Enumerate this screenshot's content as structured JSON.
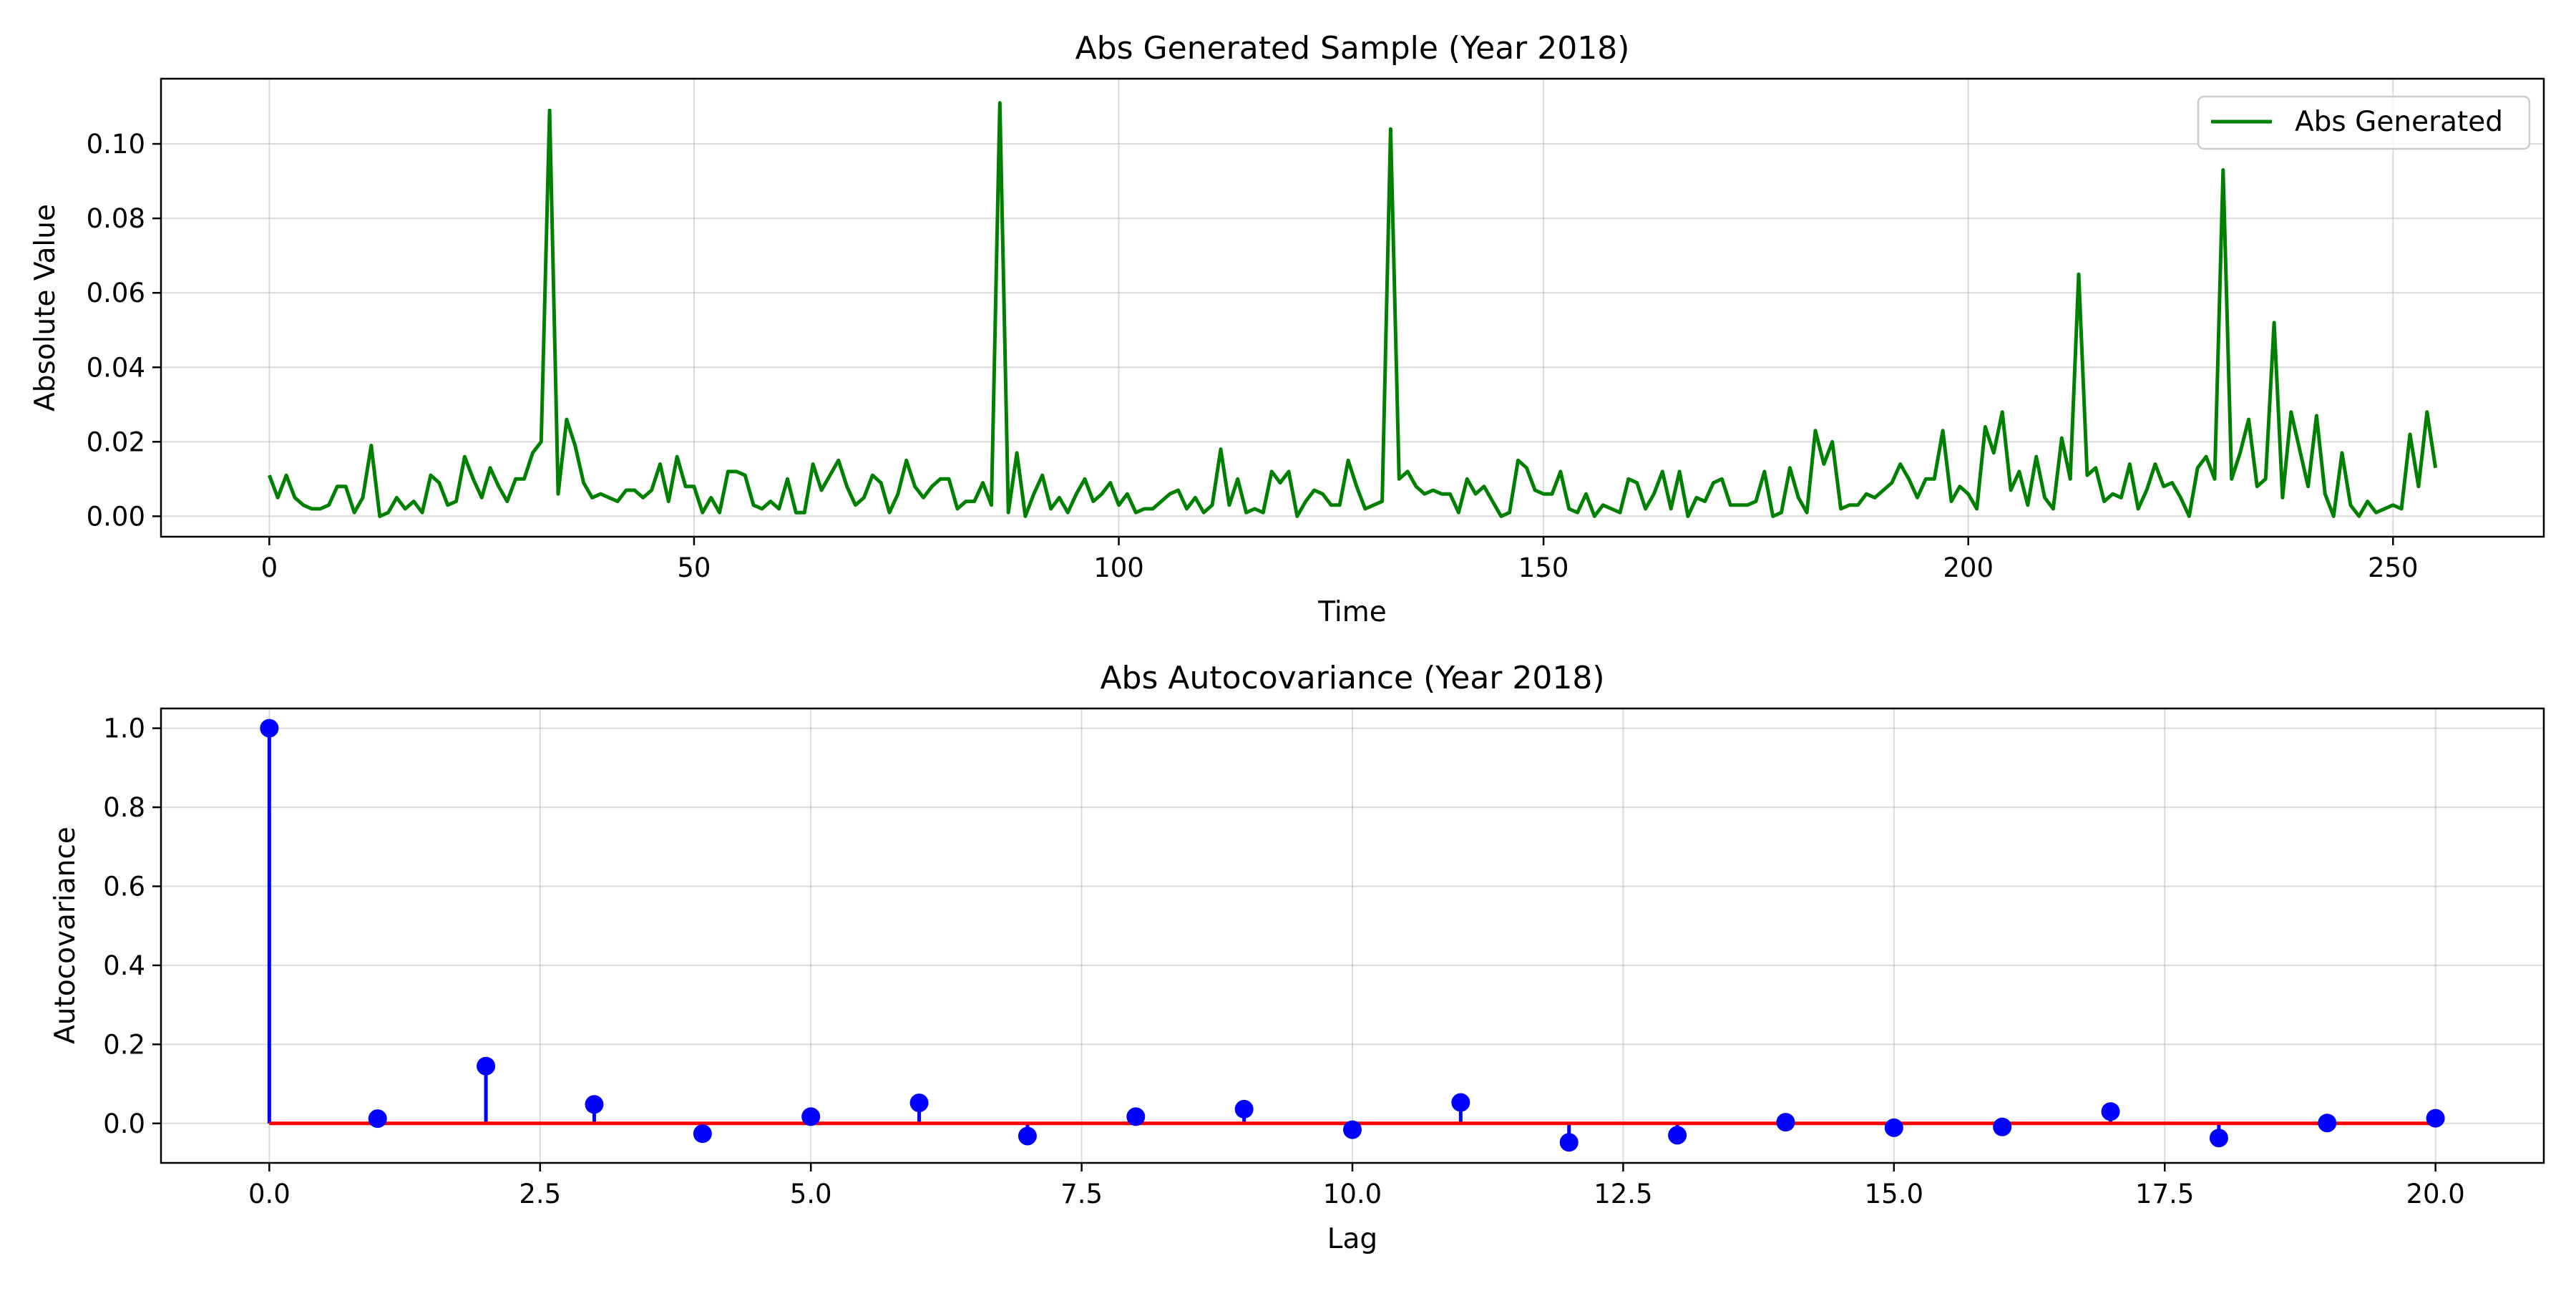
{
  "colors": {
    "series": "#008000",
    "stem": "#0000ff",
    "baseline": "#ff0000",
    "grid": "#b0b0b0",
    "axes": "#000000"
  },
  "chart_data": [
    {
      "type": "line",
      "title": "Abs Generated Sample (Year 2018)",
      "xlabel": "Time",
      "ylabel": "Absolute Value",
      "xlim": [
        -12.75,
        267.75
      ],
      "ylim": [
        -0.0055,
        0.1175
      ],
      "xticks": [
        0,
        50,
        100,
        150,
        200,
        250
      ],
      "xtick_labels": [
        "0",
        "50",
        "100",
        "150",
        "200",
        "250"
      ],
      "yticks": [
        0.0,
        0.02,
        0.04,
        0.06,
        0.08,
        0.1
      ],
      "ytick_labels": [
        "0.00",
        "0.02",
        "0.04",
        "0.06",
        "0.08",
        "0.10"
      ],
      "grid": true,
      "legend_position": "upper right",
      "series": [
        {
          "name": "Abs Generated",
          "color": "#008000",
          "y": [
            0.011,
            0.005,
            0.011,
            0.005,
            0.003,
            0.002,
            0.002,
            0.003,
            0.008,
            0.008,
            0.001,
            0.005,
            0.019,
            0.0,
            0.001,
            0.005,
            0.002,
            0.004,
            0.001,
            0.011,
            0.009,
            0.003,
            0.004,
            0.016,
            0.01,
            0.005,
            0.013,
            0.008,
            0.004,
            0.01,
            0.01,
            0.017,
            0.02,
            0.109,
            0.006,
            0.026,
            0.019,
            0.009,
            0.005,
            0.006,
            0.005,
            0.004,
            0.007,
            0.007,
            0.005,
            0.007,
            0.014,
            0.004,
            0.016,
            0.008,
            0.008,
            0.001,
            0.005,
            0.001,
            0.012,
            0.012,
            0.011,
            0.003,
            0.002,
            0.004,
            0.002,
            0.01,
            0.001,
            0.001,
            0.014,
            0.007,
            0.011,
            0.015,
            0.008,
            0.003,
            0.005,
            0.011,
            0.009,
            0.001,
            0.006,
            0.015,
            0.008,
            0.005,
            0.008,
            0.01,
            0.01,
            0.002,
            0.004,
            0.004,
            0.009,
            0.003,
            0.111,
            0.001,
            0.017,
            0.0,
            0.006,
            0.011,
            0.002,
            0.005,
            0.001,
            0.006,
            0.01,
            0.004,
            0.006,
            0.009,
            0.003,
            0.006,
            0.001,
            0.002,
            0.002,
            0.004,
            0.006,
            0.007,
            0.002,
            0.005,
            0.001,
            0.003,
            0.018,
            0.003,
            0.01,
            0.001,
            0.002,
            0.001,
            0.012,
            0.009,
            0.012,
            0.0,
            0.004,
            0.007,
            0.006,
            0.003,
            0.003,
            0.015,
            0.008,
            0.002,
            0.003,
            0.004,
            0.104,
            0.01,
            0.012,
            0.008,
            0.006,
            0.007,
            0.006,
            0.006,
            0.001,
            0.01,
            0.006,
            0.008,
            0.004,
            0.0,
            0.001,
            0.015,
            0.013,
            0.007,
            0.006,
            0.006,
            0.012,
            0.002,
            0.001,
            0.006,
            0.0,
            0.003,
            0.002,
            0.001,
            0.01,
            0.009,
            0.002,
            0.006,
            0.012,
            0.002,
            0.012,
            0.0,
            0.005,
            0.004,
            0.009,
            0.01,
            0.003,
            0.003,
            0.003,
            0.004,
            0.012,
            0.0,
            0.001,
            0.013,
            0.005,
            0.001,
            0.023,
            0.014,
            0.02,
            0.002,
            0.003,
            0.003,
            0.006,
            0.005,
            0.007,
            0.009,
            0.014,
            0.01,
            0.005,
            0.01,
            0.01,
            0.023,
            0.004,
            0.008,
            0.006,
            0.002,
            0.024,
            0.017,
            0.028,
            0.007,
            0.012,
            0.003,
            0.016,
            0.005,
            0.002,
            0.021,
            0.01,
            0.065,
            0.011,
            0.013,
            0.004,
            0.006,
            0.005,
            0.014,
            0.002,
            0.007,
            0.014,
            0.008,
            0.009,
            0.005,
            0.0,
            0.013,
            0.016,
            0.01,
            0.093,
            0.01,
            0.017,
            0.026,
            0.008,
            0.01,
            0.052,
            0.005,
            0.028,
            0.018,
            0.008,
            0.027,
            0.006,
            0.0,
            0.017,
            0.003,
            0.0,
            0.004,
            0.001,
            0.002,
            0.003,
            0.002,
            0.022,
            0.008,
            0.028,
            0.013
          ]
        }
      ]
    },
    {
      "type": "stem",
      "title": "Abs Autocovariance (Year 2018)",
      "xlabel": "Lag",
      "ylabel": "Autocovariance",
      "xlim": [
        -1.0,
        21.0
      ],
      "ylim": [
        -0.1,
        1.05
      ],
      "xticks": [
        0.0,
        2.5,
        5.0,
        7.5,
        10.0,
        12.5,
        15.0,
        17.5,
        20.0
      ],
      "xtick_labels": [
        "0.0",
        "2.5",
        "5.0",
        "7.5",
        "10.0",
        "12.5",
        "15.0",
        "17.5",
        "20.0"
      ],
      "yticks": [
        0.0,
        0.2,
        0.4,
        0.6,
        0.8,
        1.0
      ],
      "ytick_labels": [
        "0.0",
        "0.2",
        "0.4",
        "0.6",
        "0.8",
        "1.0"
      ],
      "grid": true,
      "x": [
        0,
        1,
        2,
        3,
        4,
        5,
        6,
        7,
        8,
        9,
        10,
        11,
        12,
        13,
        14,
        15,
        16,
        17,
        18,
        19,
        20
      ],
      "values": [
        1.0,
        0.012,
        0.145,
        0.048,
        -0.026,
        0.017,
        0.052,
        -0.032,
        0.017,
        0.036,
        -0.016,
        0.053,
        -0.048,
        -0.03,
        0.003,
        -0.011,
        -0.009,
        0.03,
        -0.037,
        0.001,
        0.013
      ]
    }
  ]
}
